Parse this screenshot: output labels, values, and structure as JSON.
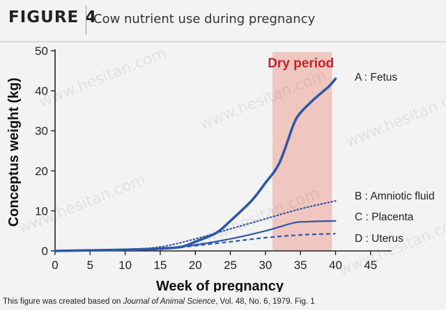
{
  "header": {
    "figure_label": "FIGURE 4",
    "title": "Cow nutrient use during pregnancy"
  },
  "footnote": {
    "prefix": "This figure was created based on ",
    "journal": "Journal of Animal Science",
    "suffix": ", Vol. 48, No. 6, 1979. Fig. 1"
  },
  "watermark": "www.hesitan.com",
  "colors": {
    "line": "#2f57a6",
    "dry_period_fill": "#efc6c0",
    "dry_period_text": "#c0272d",
    "axis": "#222222"
  },
  "chart_data": {
    "type": "line",
    "title": "",
    "xlabel": "Week of pregnancy",
    "ylabel": "Conceptus weight (kg)",
    "xlim": [
      0,
      48
    ],
    "ylim": [
      0,
      50
    ],
    "xticks": [
      0,
      5,
      10,
      15,
      20,
      25,
      30,
      35,
      40,
      45
    ],
    "yticks": [
      0,
      10,
      20,
      30,
      40,
      50
    ],
    "shaded_region": {
      "label": "Dry period",
      "x_start": 31,
      "x_end": 39.5
    },
    "series": [
      {
        "name": "A : Fetus",
        "style": "solid-thick",
        "x": [
          0,
          10,
          15,
          18,
          20,
          23,
          25,
          28,
          30,
          32,
          34,
          35,
          37,
          39,
          40
        ],
        "y": [
          0,
          0.3,
          0.6,
          1.0,
          2.3,
          4.5,
          7.5,
          12.5,
          17.0,
          22.0,
          31.5,
          34.5,
          38.0,
          41.0,
          43.0
        ]
      },
      {
        "name": "B : Amniotic fluid",
        "style": "dotted",
        "x": [
          0,
          10,
          15,
          20,
          25,
          30,
          35,
          40
        ],
        "y": [
          0,
          0.4,
          1.0,
          3.0,
          5.5,
          8.0,
          10.5,
          12.5
        ]
      },
      {
        "name": "C : Placenta",
        "style": "solid",
        "x": [
          0,
          10,
          15,
          20,
          25,
          30,
          34,
          36,
          40
        ],
        "y": [
          0,
          0.2,
          0.5,
          1.5,
          3.0,
          5.0,
          7.0,
          7.3,
          7.5
        ]
      },
      {
        "name": "D : Uterus",
        "style": "dashed",
        "x": [
          0,
          10,
          15,
          20,
          25,
          30,
          35,
          40
        ],
        "y": [
          0,
          0.2,
          0.4,
          1.3,
          2.3,
          3.3,
          4.0,
          4.3
        ]
      }
    ]
  }
}
